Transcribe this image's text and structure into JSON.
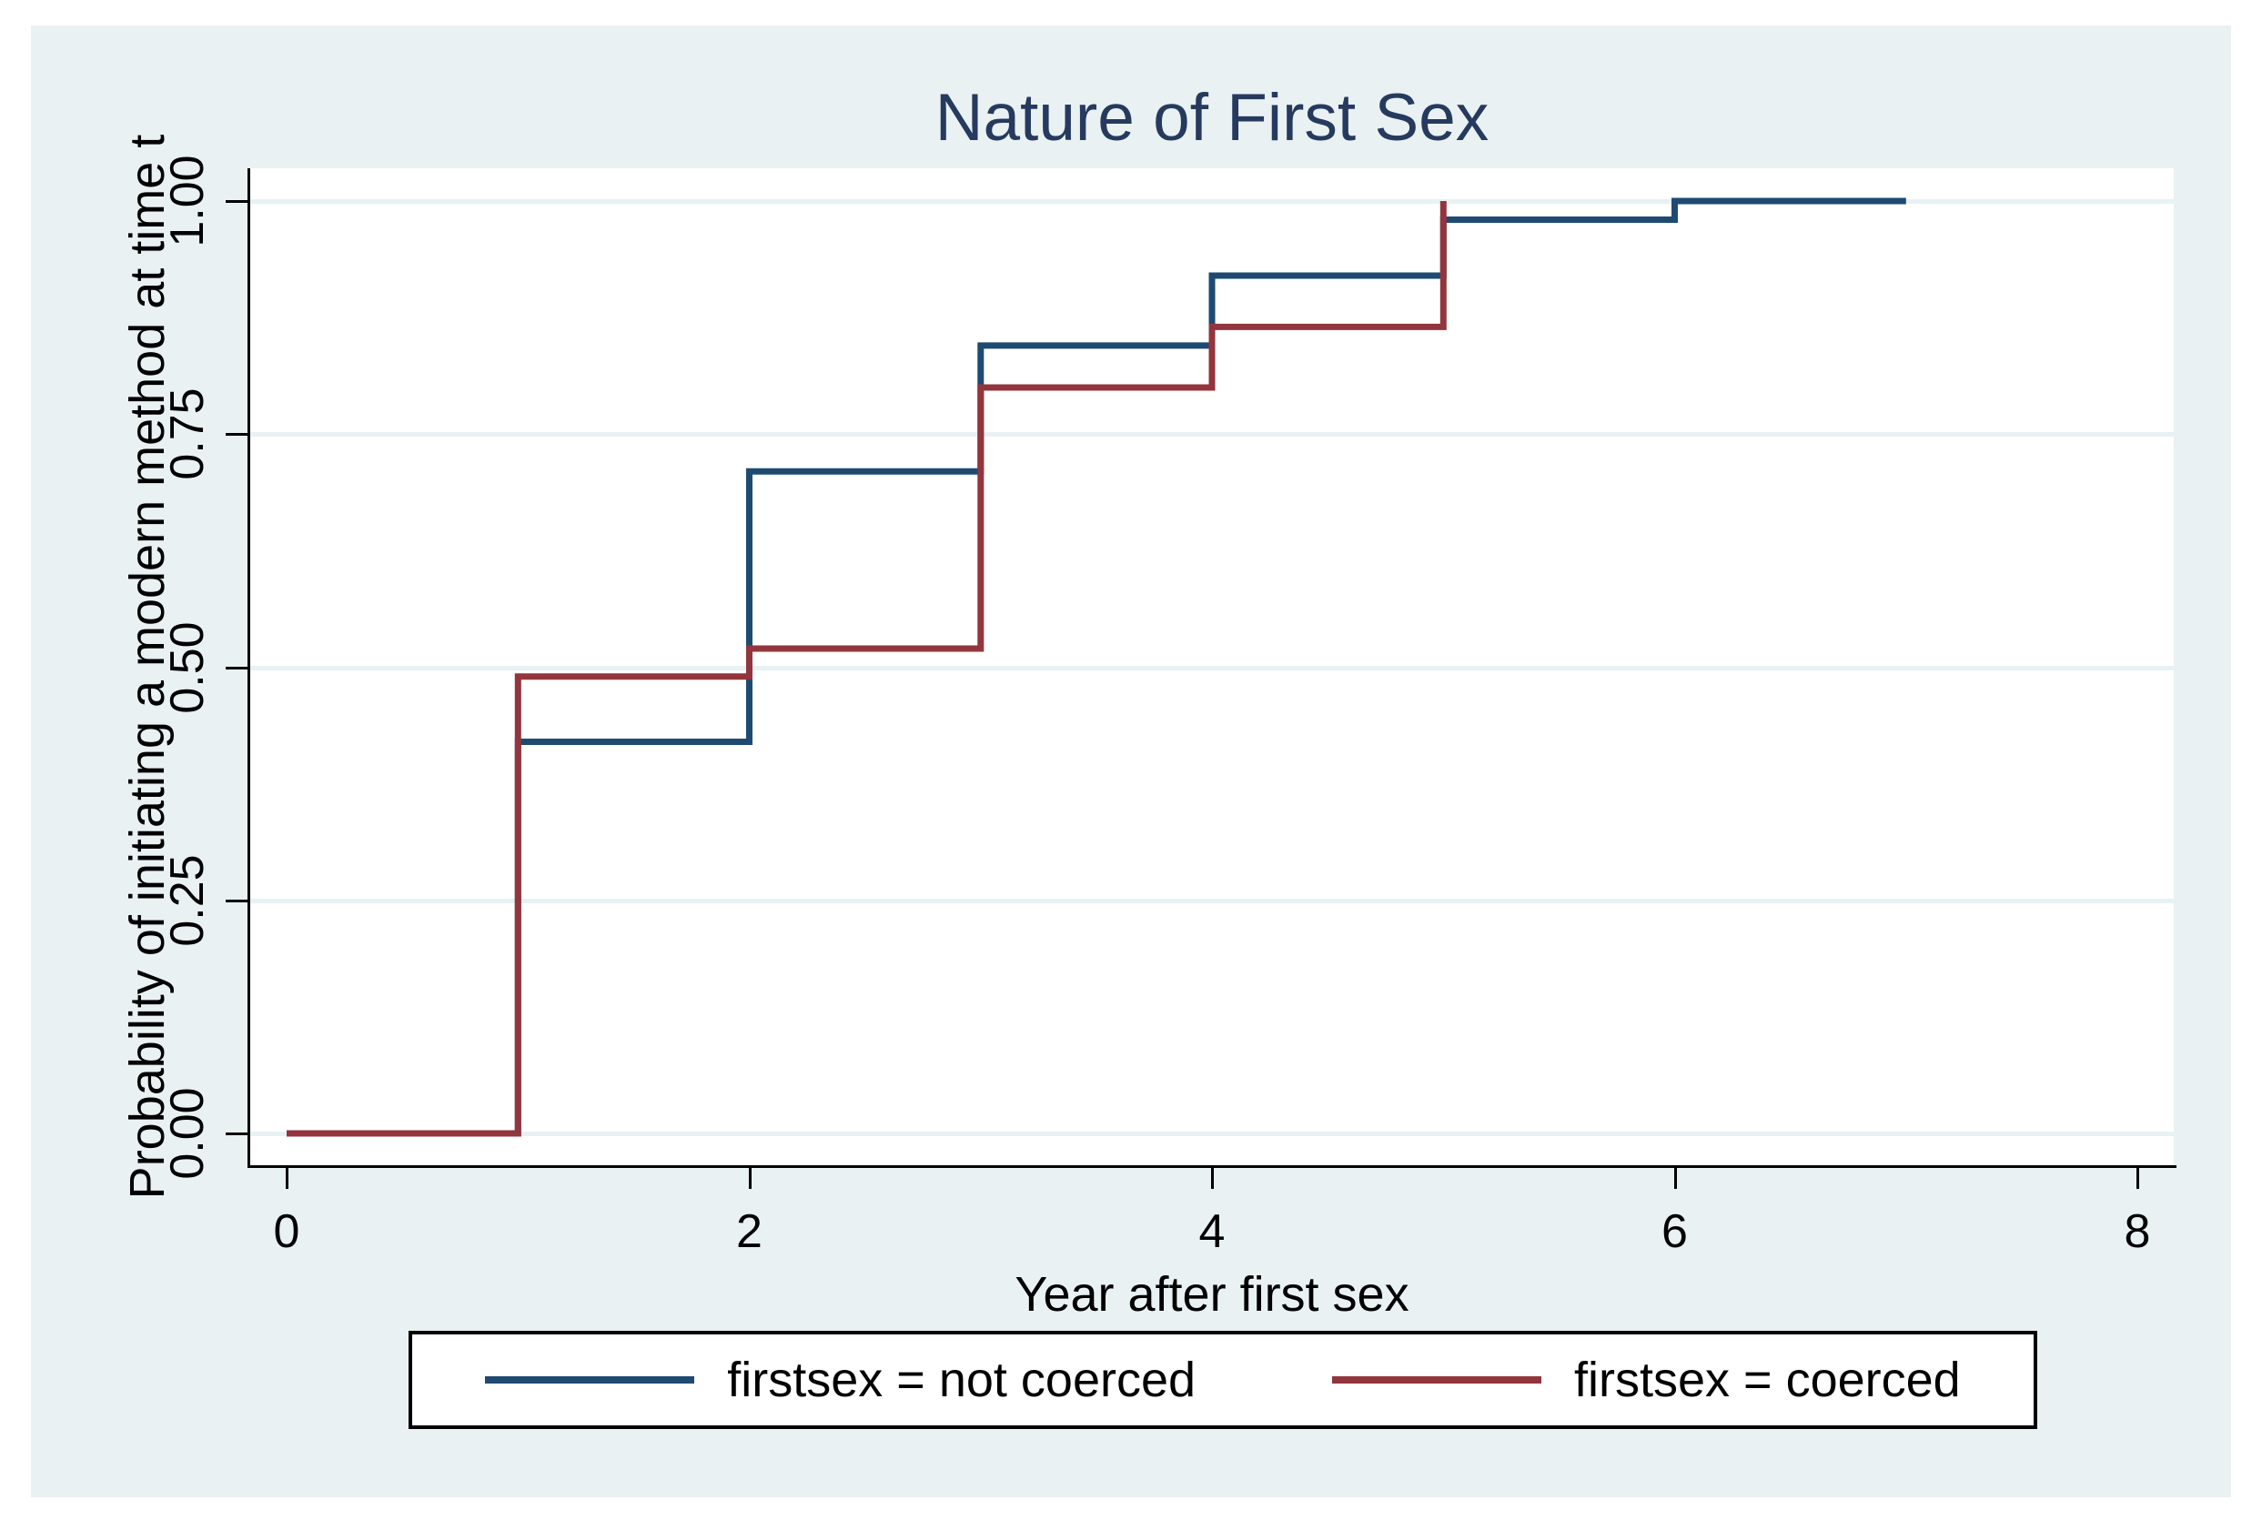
{
  "colors": {
    "background": "#eaf1f2",
    "plot_background": "#ffffff",
    "gridline": "#e8f1f3",
    "axis": "#000000",
    "title": "#253a5e",
    "series_not_coerced": "#1e4a72",
    "series_coerced": "#92353c",
    "legend_border": "#000000",
    "legend_background": "#ffffff"
  },
  "chart_data": {
    "type": "line",
    "subtype": "step",
    "title": "Nature of First Sex",
    "xlabel": "Year after first sex",
    "ylabel": "Probability of initiating a modern method at time t",
    "xlim": [
      0,
      8
    ],
    "ylim": [
      0,
      1
    ],
    "x_ticks": [
      0,
      2,
      4,
      6,
      8
    ],
    "x_tick_labels": [
      "0",
      "2",
      "4",
      "6",
      "8"
    ],
    "y_ticks": [
      0,
      0.25,
      0.5,
      0.75,
      1
    ],
    "y_tick_labels": [
      "0.00",
      "0.25",
      "0.50",
      "0.75",
      "1.00"
    ],
    "grid": "horizontal",
    "legend_position": "bottom",
    "series": [
      {
        "name": "firstsex = not coerced",
        "color": "#1e4a72",
        "points": [
          [
            0,
            0
          ],
          [
            1,
            0
          ],
          [
            1,
            0.42
          ],
          [
            2,
            0.42
          ],
          [
            2,
            0.71
          ],
          [
            3,
            0.71
          ],
          [
            3,
            0.845
          ],
          [
            4,
            0.845
          ],
          [
            4,
            0.92
          ],
          [
            5,
            0.92
          ],
          [
            5,
            0.98
          ],
          [
            6,
            0.98
          ],
          [
            6,
            1.0
          ],
          [
            7,
            1.0
          ]
        ]
      },
      {
        "name": "firstsex = coerced",
        "color": "#92353c",
        "points": [
          [
            0,
            0
          ],
          [
            1,
            0
          ],
          [
            1,
            0.49
          ],
          [
            2,
            0.49
          ],
          [
            2,
            0.52
          ],
          [
            3,
            0.52
          ],
          [
            3,
            0.8
          ],
          [
            4,
            0.8
          ],
          [
            4,
            0.865
          ],
          [
            5,
            0.865
          ],
          [
            5,
            1.0
          ]
        ]
      }
    ]
  },
  "legend": {
    "entries": [
      "firstsex = not coerced",
      "firstsex = coerced"
    ]
  }
}
